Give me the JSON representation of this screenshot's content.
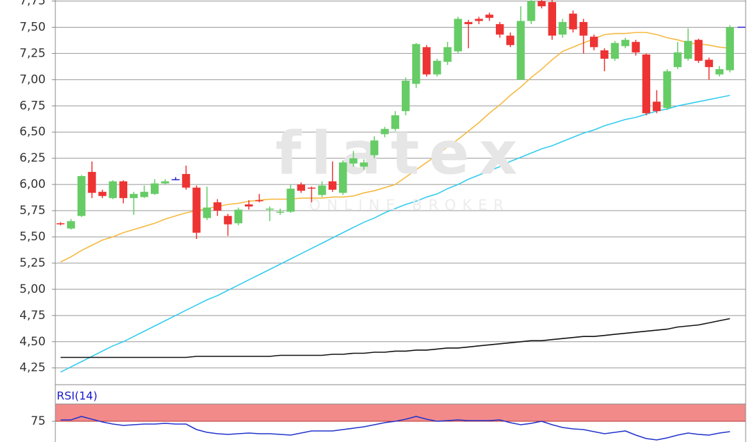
{
  "chart_data": [
    {
      "type": "candlestick",
      "watermark": {
        "title": "flatex",
        "subtitle": "ONLINE BROKER"
      },
      "ylim": [
        4.09,
        7.76
      ],
      "yticks": [
        {
          "value": 4.25,
          "label": "4,25"
        },
        {
          "value": 4.5,
          "label": "4,50"
        },
        {
          "value": 4.75,
          "label": "4,75"
        },
        {
          "value": 5.0,
          "label": "5,00"
        },
        {
          "value": 5.25,
          "label": "5,25"
        },
        {
          "value": 5.5,
          "label": "5,50"
        },
        {
          "value": 5.75,
          "label": "5,75"
        },
        {
          "value": 6.0,
          "label": "6,00"
        },
        {
          "value": 6.25,
          "label": "6,25"
        },
        {
          "value": 6.5,
          "label": "6,50"
        },
        {
          "value": 6.75,
          "label": "6,75"
        },
        {
          "value": 7.0,
          "label": "7,00"
        },
        {
          "value": 7.25,
          "label": "7,25"
        },
        {
          "value": 7.5,
          "label": "7,50"
        },
        {
          "value": 7.75,
          "label": "7,75"
        }
      ],
      "grid": true,
      "up_color": "#66cc66",
      "down_color": "#ee3333",
      "doji_color": "#2222cc",
      "open": [
        5.63,
        5.58,
        5.7,
        6.12,
        5.93,
        5.87,
        6.03,
        5.87,
        5.88,
        5.91,
        6.01,
        6.05,
        6.1,
        5.97,
        5.68,
        5.83,
        5.7,
        5.63,
        5.81,
        5.85,
        5.76,
        5.73,
        5.74,
        6.0,
        5.97,
        5.9,
        6.03,
        5.92,
        6.2,
        6.17,
        6.28,
        6.48,
        6.53,
        6.7,
        6.96,
        7.31,
        7.05,
        7.17,
        7.27,
        7.55,
        7.58,
        7.62,
        7.53,
        7.42,
        7.0,
        7.56,
        7.75,
        7.74,
        7.43,
        7.63,
        7.55,
        7.41,
        7.28,
        7.2,
        7.32,
        7.36,
        7.24,
        6.79,
        6.73,
        7.12,
        7.2,
        7.38,
        7.19,
        7.05,
        7.09
      ],
      "high": [
        5.64,
        5.67,
        6.09,
        6.22,
        5.95,
        6.04,
        6.04,
        5.93,
        5.99,
        6.05,
        6.05,
        6.07,
        6.18,
        5.99,
        5.98,
        5.86,
        5.72,
        5.78,
        5.85,
        5.91,
        5.79,
        5.77,
        6.0,
        6.02,
        5.98,
        6.03,
        6.22,
        6.23,
        6.32,
        6.24,
        6.46,
        6.55,
        6.7,
        7.02,
        7.35,
        7.33,
        7.2,
        7.36,
        7.6,
        7.57,
        7.6,
        7.64,
        7.55,
        7.45,
        7.7,
        7.8,
        7.8,
        7.76,
        7.58,
        7.66,
        7.58,
        7.43,
        7.3,
        7.37,
        7.4,
        7.38,
        7.25,
        6.9,
        7.1,
        7.36,
        7.49,
        7.39,
        7.21,
        7.13,
        7.52
      ],
      "low": [
        5.61,
        5.57,
        5.69,
        5.87,
        5.87,
        5.86,
        5.82,
        5.71,
        5.87,
        5.9,
        6.0,
        6.05,
        5.95,
        5.48,
        5.66,
        5.7,
        5.51,
        5.61,
        5.76,
        5.83,
        5.65,
        5.71,
        5.73,
        5.92,
        5.83,
        5.88,
        5.93,
        5.9,
        6.17,
        6.14,
        6.25,
        6.45,
        6.51,
        6.66,
        6.92,
        7.03,
        7.03,
        7.14,
        7.25,
        7.3,
        7.53,
        7.56,
        7.4,
        7.31,
        7.0,
        7.53,
        7.68,
        7.38,
        7.4,
        7.45,
        7.25,
        7.28,
        7.08,
        7.18,
        7.3,
        7.23,
        6.66,
        6.68,
        6.71,
        7.1,
        7.18,
        7.16,
        7.0,
        7.03,
        7.07
      ],
      "close": [
        5.62,
        5.65,
        6.08,
        5.92,
        5.89,
        6.03,
        5.87,
        5.91,
        5.93,
        6.01,
        6.03,
        6.05,
        5.97,
        5.54,
        5.78,
        5.75,
        5.62,
        5.76,
        5.79,
        5.84,
        5.77,
        5.74,
        5.96,
        5.94,
        5.96,
        5.99,
        5.95,
        6.21,
        6.25,
        6.21,
        6.42,
        6.53,
        6.66,
        6.99,
        7.34,
        7.05,
        7.18,
        7.31,
        7.58,
        7.53,
        7.56,
        7.59,
        7.43,
        7.33,
        7.56,
        7.75,
        7.7,
        7.42,
        7.55,
        7.48,
        7.42,
        7.31,
        7.2,
        7.35,
        7.38,
        7.26,
        6.68,
        6.7,
        7.08,
        7.26,
        7.37,
        7.18,
        7.12,
        7.1,
        7.5
      ],
      "last_price": 7.5,
      "last_price_color": "#2222cc",
      "series": [
        {
          "color": "#f5b940",
          "values": [
            5.26,
            5.31,
            5.37,
            5.42,
            5.47,
            5.5,
            5.54,
            5.57,
            5.6,
            5.63,
            5.67,
            5.7,
            5.73,
            5.75,
            5.77,
            5.79,
            5.81,
            5.82,
            5.84,
            5.85,
            5.86,
            5.86,
            5.86,
            5.87,
            5.87,
            5.87,
            5.88,
            5.88,
            5.89,
            5.92,
            5.94,
            5.97,
            6.0,
            6.07,
            6.14,
            6.21,
            6.28,
            6.36,
            6.43,
            6.51,
            6.59,
            6.68,
            6.76,
            6.85,
            6.93,
            7.02,
            7.1,
            7.19,
            7.27,
            7.31,
            7.35,
            7.39,
            7.43,
            7.44,
            7.44,
            7.45,
            7.45,
            7.43,
            7.4,
            7.38,
            7.35,
            7.34,
            7.33,
            7.31,
            7.3
          ]
        },
        {
          "color": "#33ccee",
          "values": [
            4.21,
            4.26,
            4.31,
            4.36,
            4.41,
            4.46,
            4.5,
            4.55,
            4.6,
            4.65,
            4.7,
            4.75,
            4.8,
            4.85,
            4.9,
            4.94,
            4.99,
            5.04,
            5.09,
            5.14,
            5.19,
            5.24,
            5.29,
            5.34,
            5.39,
            5.44,
            5.49,
            5.54,
            5.59,
            5.64,
            5.68,
            5.73,
            5.77,
            5.81,
            5.84,
            5.88,
            5.91,
            5.96,
            6.0,
            6.05,
            6.09,
            6.13,
            6.17,
            6.22,
            6.26,
            6.3,
            6.34,
            6.37,
            6.41,
            6.45,
            6.49,
            6.52,
            6.56,
            6.59,
            6.62,
            6.64,
            6.67,
            6.7,
            6.72,
            6.75,
            6.77,
            6.79,
            6.81,
            6.83,
            6.85
          ]
        },
        {
          "color": "#111111",
          "values": [
            4.35,
            4.35,
            4.35,
            4.35,
            4.35,
            4.35,
            4.35,
            4.35,
            4.35,
            4.35,
            4.35,
            4.35,
            4.35,
            4.36,
            4.36,
            4.36,
            4.36,
            4.36,
            4.36,
            4.36,
            4.36,
            4.37,
            4.37,
            4.37,
            4.37,
            4.37,
            4.38,
            4.38,
            4.39,
            4.39,
            4.4,
            4.4,
            4.41,
            4.41,
            4.42,
            4.42,
            4.43,
            4.44,
            4.44,
            4.45,
            4.46,
            4.47,
            4.48,
            4.49,
            4.5,
            4.51,
            4.51,
            4.52,
            4.53,
            4.54,
            4.55,
            4.55,
            4.56,
            4.57,
            4.58,
            4.59,
            4.6,
            4.61,
            4.62,
            4.64,
            4.65,
            4.66,
            4.68,
            4.7,
            4.72
          ]
        }
      ]
    },
    {
      "type": "line",
      "title": "RSI(14)",
      "ylim": [
        45,
        100
      ],
      "yticks": [
        75
      ],
      "band": {
        "from": 75,
        "to": 100,
        "color": "#f28a8a"
      },
      "series": [
        {
          "color": "#2233cc",
          "values": [
            77,
            77,
            82,
            78,
            74,
            71,
            69,
            70,
            71,
            71,
            72,
            71,
            71,
            63,
            59,
            57,
            56,
            57,
            58,
            57,
            57,
            56,
            55,
            58,
            61,
            61,
            61,
            63,
            65,
            67,
            70,
            73,
            75,
            78,
            82,
            78,
            75,
            76,
            77,
            76,
            76,
            76,
            77,
            73,
            70,
            72,
            75,
            70,
            66,
            64,
            63,
            60,
            57,
            59,
            61,
            55,
            50,
            48,
            51,
            55,
            58,
            56,
            55,
            58,
            60
          ]
        }
      ]
    }
  ]
}
